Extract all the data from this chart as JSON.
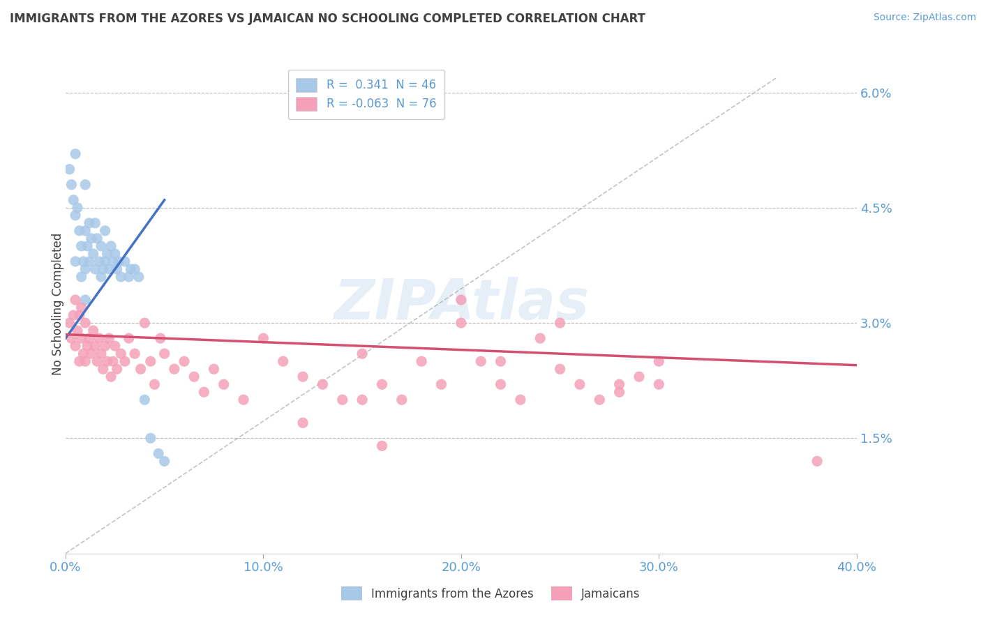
{
  "title": "IMMIGRANTS FROM THE AZORES VS JAMAICAN NO SCHOOLING COMPLETED CORRELATION CHART",
  "source": "Source: ZipAtlas.com",
  "ylabel": "No Schooling Completed",
  "xlim": [
    0.0,
    0.4
  ],
  "ylim": [
    0.0,
    0.065
  ],
  "yticks": [
    0.015,
    0.03,
    0.045,
    0.06
  ],
  "ytick_labels": [
    "1.5%",
    "3.0%",
    "4.5%",
    "6.0%"
  ],
  "xticks": [
    0.0,
    0.1,
    0.2,
    0.3,
    0.4
  ],
  "xtick_labels": [
    "0.0%",
    "10.0%",
    "20.0%",
    "30.0%",
    "40.0%"
  ],
  "series1_label": "Immigrants from the Azores",
  "series2_label": "Jamaicans",
  "R1": "0.341",
  "N1": "46",
  "R2": "-0.063",
  "N2": "76",
  "color_blue": "#a8c8e8",
  "color_blue_line": "#4472c4",
  "color_pink": "#f4a0b8",
  "color_pink_line": "#d45070",
  "color_axis_labels": "#5b9bd5",
  "title_color": "#404040",
  "background_color": "#ffffff",
  "grid_color": "#b8b8b8",
  "azores_x": [
    0.002,
    0.003,
    0.004,
    0.005,
    0.005,
    0.005,
    0.006,
    0.007,
    0.008,
    0.008,
    0.009,
    0.01,
    0.01,
    0.01,
    0.01,
    0.011,
    0.012,
    0.012,
    0.013,
    0.014,
    0.015,
    0.015,
    0.016,
    0.017,
    0.018,
    0.018,
    0.019,
    0.02,
    0.02,
    0.021,
    0.022,
    0.023,
    0.024,
    0.025,
    0.026,
    0.027,
    0.028,
    0.03,
    0.032,
    0.033,
    0.035,
    0.037,
    0.04,
    0.043,
    0.047,
    0.05
  ],
  "azores_y": [
    0.05,
    0.048,
    0.046,
    0.052,
    0.044,
    0.038,
    0.045,
    0.042,
    0.04,
    0.036,
    0.038,
    0.048,
    0.042,
    0.037,
    0.033,
    0.04,
    0.043,
    0.038,
    0.041,
    0.039,
    0.043,
    0.037,
    0.041,
    0.038,
    0.036,
    0.04,
    0.037,
    0.042,
    0.038,
    0.039,
    0.037,
    0.04,
    0.038,
    0.039,
    0.037,
    0.038,
    0.036,
    0.038,
    0.036,
    0.037,
    0.037,
    0.036,
    0.02,
    0.015,
    0.013,
    0.012
  ],
  "jamaicans_x": [
    0.002,
    0.003,
    0.004,
    0.005,
    0.005,
    0.006,
    0.007,
    0.007,
    0.008,
    0.008,
    0.009,
    0.01,
    0.01,
    0.011,
    0.012,
    0.013,
    0.014,
    0.015,
    0.016,
    0.017,
    0.018,
    0.019,
    0.02,
    0.021,
    0.022,
    0.023,
    0.024,
    0.025,
    0.026,
    0.028,
    0.03,
    0.032,
    0.035,
    0.038,
    0.04,
    0.043,
    0.045,
    0.048,
    0.05,
    0.055,
    0.06,
    0.065,
    0.07,
    0.075,
    0.08,
    0.09,
    0.1,
    0.11,
    0.12,
    0.13,
    0.14,
    0.15,
    0.16,
    0.17,
    0.18,
    0.19,
    0.2,
    0.21,
    0.22,
    0.23,
    0.24,
    0.25,
    0.26,
    0.27,
    0.28,
    0.29,
    0.3,
    0.15,
    0.2,
    0.22,
    0.25,
    0.28,
    0.12,
    0.16,
    0.38,
    0.3
  ],
  "jamaicans_y": [
    0.03,
    0.028,
    0.031,
    0.027,
    0.033,
    0.029,
    0.031,
    0.025,
    0.028,
    0.032,
    0.026,
    0.03,
    0.025,
    0.027,
    0.028,
    0.026,
    0.029,
    0.027,
    0.025,
    0.028,
    0.026,
    0.024,
    0.027,
    0.025,
    0.028,
    0.023,
    0.025,
    0.027,
    0.024,
    0.026,
    0.025,
    0.028,
    0.026,
    0.024,
    0.03,
    0.025,
    0.022,
    0.028,
    0.026,
    0.024,
    0.025,
    0.023,
    0.021,
    0.024,
    0.022,
    0.02,
    0.028,
    0.025,
    0.023,
    0.022,
    0.02,
    0.026,
    0.022,
    0.02,
    0.025,
    0.022,
    0.03,
    0.025,
    0.022,
    0.02,
    0.028,
    0.024,
    0.022,
    0.02,
    0.021,
    0.023,
    0.025,
    0.02,
    0.033,
    0.025,
    0.03,
    0.022,
    0.017,
    0.014,
    0.012,
    0.022
  ],
  "blue_line_x": [
    0.0,
    0.05
  ],
  "blue_line_y": [
    0.028,
    0.046
  ],
  "pink_line_x": [
    0.0,
    0.4
  ],
  "pink_line_y": [
    0.0285,
    0.0245
  ],
  "dash_line_x": [
    0.0,
    0.36
  ],
  "dash_line_y": [
    0.0,
    0.062
  ],
  "watermark": "ZIPAtlas"
}
